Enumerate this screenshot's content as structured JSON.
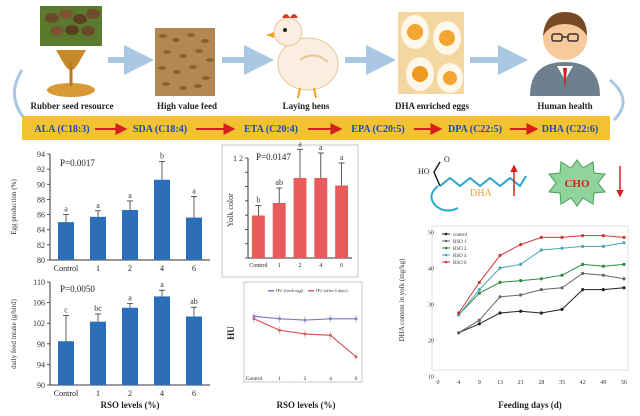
{
  "flow": {
    "items": [
      {
        "label": "Rubber seed resource",
        "icon": "rubber-seed-icon"
      },
      {
        "label": "High value feed",
        "icon": "feed-grain-icon"
      },
      {
        "label": "Laying hens",
        "icon": "hen-icon"
      },
      {
        "label": "DHA enriched eggs",
        "icon": "egg-icon"
      },
      {
        "label": "Human health",
        "icon": "person-icon"
      }
    ],
    "arrow_color": "#a9c7e3"
  },
  "pathway": {
    "steps": [
      "ALA (C18:3)",
      "SDA (C18:4)",
      "ETA (C20:4)",
      "EPA (C20:5)",
      "DPA (C22:5)",
      "DHA (C22:6)"
    ],
    "band_color": "#f2c230",
    "text_color": "#1a49b8",
    "arrow_color": "#d62020"
  },
  "molecules": {
    "dha_label": "DHA",
    "cho_label": "CHO",
    "carboxyl_o": "O",
    "carboxyl_ho": "HO"
  },
  "chart_data": [
    {
      "id": "egg-production",
      "type": "bar",
      "pvalue": "P=0.0017",
      "ylabel": "Egg production (%)",
      "xlabel": "",
      "categories": [
        "Control",
        "1",
        "2",
        "4",
        "6"
      ],
      "values": [
        85.0,
        85.7,
        86.6,
        90.6,
        85.6
      ],
      "errors": [
        1.0,
        0.8,
        1.2,
        2.4,
        2.8
      ],
      "letters": [
        "a",
        "a",
        "a",
        "b",
        "a"
      ],
      "ylim": [
        80,
        94
      ],
      "yticks": [
        "80",
        "82",
        "84",
        "86",
        "88",
        "90",
        "92",
        "94"
      ],
      "color": "#2a6fb8"
    },
    {
      "id": "feed-intake",
      "type": "bar",
      "pvalue": "P=0.0050",
      "ylabel": "daily feed intake (g/bird)",
      "xlabel": "RSO levels (%)",
      "categories": [
        "Control",
        "1",
        "2",
        "4",
        "6"
      ],
      "values": [
        98.5,
        102.3,
        105.0,
        107.2,
        103.3
      ],
      "errors": [
        5.0,
        1.5,
        0.8,
        1.2,
        1.8
      ],
      "letters": [
        "c",
        "bc",
        "a",
        "a",
        "ab"
      ],
      "ylim": [
        90,
        110
      ],
      "yticks": [
        "90",
        "94",
        "98",
        "102",
        "106",
        "110"
      ],
      "color": "#2a6fb8"
    },
    {
      "id": "yolk-color",
      "type": "bar",
      "pvalue": "P=0.0147",
      "ylabel": "Yolk color",
      "xlabel": "",
      "categories": [
        "Control",
        "1",
        "2",
        "4",
        "6"
      ],
      "values": [
        7.4,
        8.4,
        10.4,
        10.4,
        9.8
      ],
      "errors": [
        0.8,
        1.2,
        2.3,
        2.0,
        1.8
      ],
      "letters": [
        "b",
        "ab",
        "a",
        "a",
        "a"
      ],
      "ylim": [
        4,
        12
      ],
      "yticks": [
        "",
        "",
        "",
        "",
        "",
        "",
        "",
        "1 2"
      ],
      "color": "#e85b5b"
    },
    {
      "id": "haugh-unit",
      "type": "line",
      "ylabel": "HU",
      "xlabel": "RSO levels (%)",
      "categories": [
        "Control",
        "1",
        "2",
        "4",
        "6"
      ],
      "series": [
        {
          "name": "HU (fresh egg)",
          "values": [
            82,
            81,
            80.5,
            81,
            81
          ],
          "color": "#7a7ad6"
        },
        {
          "name": "HU (after 6 days)",
          "values": [
            81,
            76.5,
            75,
            74.5,
            66
          ],
          "color": "#e05a5a"
        }
      ],
      "ylim": [
        60,
        90
      ]
    },
    {
      "id": "dha-yolk",
      "type": "line",
      "ylabel": "DHA content in yolk (mg/kg)",
      "xlabel": "Feeding days (d)",
      "x": [
        0,
        4,
        9,
        13,
        21,
        28,
        35,
        42,
        49,
        56
      ],
      "xticks": [
        "0",
        "4",
        "9",
        "13",
        "21",
        "28",
        "35",
        "42",
        "49",
        "56"
      ],
      "yticks": [
        "10",
        "20",
        "30",
        "40",
        "50"
      ],
      "ylim": [
        10,
        50
      ],
      "series": [
        {
          "name": "control",
          "values": [
            null,
            22,
            24.5,
            27.5,
            28,
            27.5,
            28.5,
            34,
            34,
            34.5
          ],
          "color": "#222222"
        },
        {
          "name": "RSO 1",
          "values": [
            null,
            22,
            25.5,
            32,
            32.5,
            34,
            34.5,
            38.5,
            38,
            37
          ],
          "color": "#666666"
        },
        {
          "name": "RSO 2",
          "values": [
            null,
            27,
            33,
            36,
            36.5,
            37,
            38,
            41,
            40.5,
            41
          ],
          "color": "#2e8b3e"
        },
        {
          "name": "RSO 4",
          "values": [
            null,
            27,
            34,
            40,
            41,
            45,
            45.5,
            46,
            46,
            47
          ],
          "color": "#4aa6b8"
        },
        {
          "name": "RSO 6",
          "values": [
            null,
            27.5,
            36,
            43.5,
            46.5,
            48.5,
            48.5,
            49,
            49,
            48.5
          ],
          "color": "#c93a3a"
        }
      ]
    }
  ]
}
